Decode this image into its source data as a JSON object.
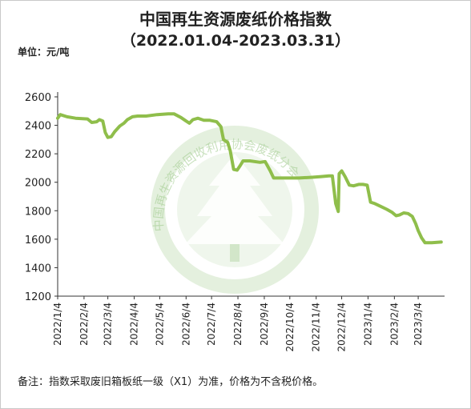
{
  "title": "中国再生资源废纸价格指数",
  "subtitle": "（2022.01.04-2023.03.31）",
  "unit_label": "单位：元/吨",
  "footnote": "备注：指数采取废旧箱板纸一级（X1）为准，价格为不含税价格。",
  "watermark": {
    "text": "中国再生资源回收利用协会废纸分会",
    "icon": "tree-logo"
  },
  "colors": {
    "series": "#8fbe4b",
    "axis": "#333333",
    "watermark": "#9dc98a"
  },
  "chart_data": {
    "type": "line",
    "title": "中国再生资源废纸价格指数",
    "ylabel": "单位：元/吨",
    "ylim": [
      1200,
      2600
    ],
    "yticks": [
      1200,
      1400,
      1600,
      1800,
      2000,
      2200,
      2400,
      2600
    ],
    "xticks": [
      "2022/1/4",
      "2022/2/4",
      "2022/3/4",
      "2022/4/4",
      "2022/5/4",
      "2022/6/4",
      "2022/7/4",
      "2022/8/4",
      "2022/9/4",
      "2022/10/4",
      "2022/11/4",
      "2022/12/4",
      "2023/1/4",
      "2023/2/4",
      "2023/3/4"
    ],
    "grid": false,
    "series": [
      {
        "values": [
          [
            "2022-01-04",
            2450
          ],
          [
            "2022-01-07",
            2475
          ],
          [
            "2022-01-15",
            2460
          ],
          [
            "2022-01-25",
            2450
          ],
          [
            "2022-02-08",
            2445
          ],
          [
            "2022-02-13",
            2420
          ],
          [
            "2022-02-19",
            2425
          ],
          [
            "2022-02-22",
            2440
          ],
          [
            "2022-02-26",
            2430
          ],
          [
            "2022-03-01",
            2350
          ],
          [
            "2022-03-04",
            2315
          ],
          [
            "2022-03-08",
            2320
          ],
          [
            "2022-03-12",
            2355
          ],
          [
            "2022-03-18",
            2395
          ],
          [
            "2022-03-23",
            2415
          ],
          [
            "2022-03-27",
            2440
          ],
          [
            "2022-04-02",
            2460
          ],
          [
            "2022-04-08",
            2465
          ],
          [
            "2022-04-18",
            2465
          ],
          [
            "2022-05-01",
            2475
          ],
          [
            "2022-05-14",
            2480
          ],
          [
            "2022-05-21",
            2480
          ],
          [
            "2022-05-29",
            2455
          ],
          [
            "2022-06-04",
            2430
          ],
          [
            "2022-06-08",
            2415
          ],
          [
            "2022-06-12",
            2440
          ],
          [
            "2022-06-18",
            2450
          ],
          [
            "2022-06-25",
            2435
          ],
          [
            "2022-07-02",
            2435
          ],
          [
            "2022-07-10",
            2425
          ],
          [
            "2022-07-15",
            2390
          ],
          [
            "2022-07-18",
            2300
          ],
          [
            "2022-07-23",
            2280
          ],
          [
            "2022-07-26",
            2220
          ],
          [
            "2022-07-30",
            2090
          ],
          [
            "2022-08-03",
            2085
          ],
          [
            "2022-08-07",
            2120
          ],
          [
            "2022-08-10",
            2150
          ],
          [
            "2022-08-18",
            2150
          ],
          [
            "2022-08-30",
            2140
          ],
          [
            "2022-09-05",
            2145
          ],
          [
            "2022-09-11",
            2080
          ],
          [
            "2022-09-15",
            2030
          ],
          [
            "2022-10-01",
            2030
          ],
          [
            "2022-10-15",
            2030
          ],
          [
            "2022-10-30",
            2035
          ],
          [
            "2022-11-10",
            2040
          ],
          [
            "2022-11-19",
            2045
          ],
          [
            "2022-11-23",
            2045
          ],
          [
            "2022-11-27",
            1850
          ],
          [
            "2022-11-30",
            1795
          ],
          [
            "2022-12-01",
            2060
          ],
          [
            "2022-12-04",
            2080
          ],
          [
            "2022-12-08",
            2040
          ],
          [
            "2022-12-13",
            1980
          ],
          [
            "2022-12-18",
            1975
          ],
          [
            "2022-12-24",
            1985
          ],
          [
            "2022-12-29",
            1985
          ],
          [
            "2023-01-03",
            1980
          ],
          [
            "2023-01-07",
            1860
          ],
          [
            "2023-01-12",
            1850
          ],
          [
            "2023-01-19",
            1830
          ],
          [
            "2023-01-26",
            1810
          ],
          [
            "2023-02-01",
            1790
          ],
          [
            "2023-02-06",
            1765
          ],
          [
            "2023-02-10",
            1770
          ],
          [
            "2023-02-15",
            1785
          ],
          [
            "2023-02-20",
            1780
          ],
          [
            "2023-02-25",
            1760
          ],
          [
            "2023-03-01",
            1710
          ],
          [
            "2023-03-04",
            1660
          ],
          [
            "2023-03-08",
            1610
          ],
          [
            "2023-03-12",
            1575
          ],
          [
            "2023-03-20",
            1575
          ],
          [
            "2023-03-31",
            1580
          ]
        ]
      }
    ]
  }
}
